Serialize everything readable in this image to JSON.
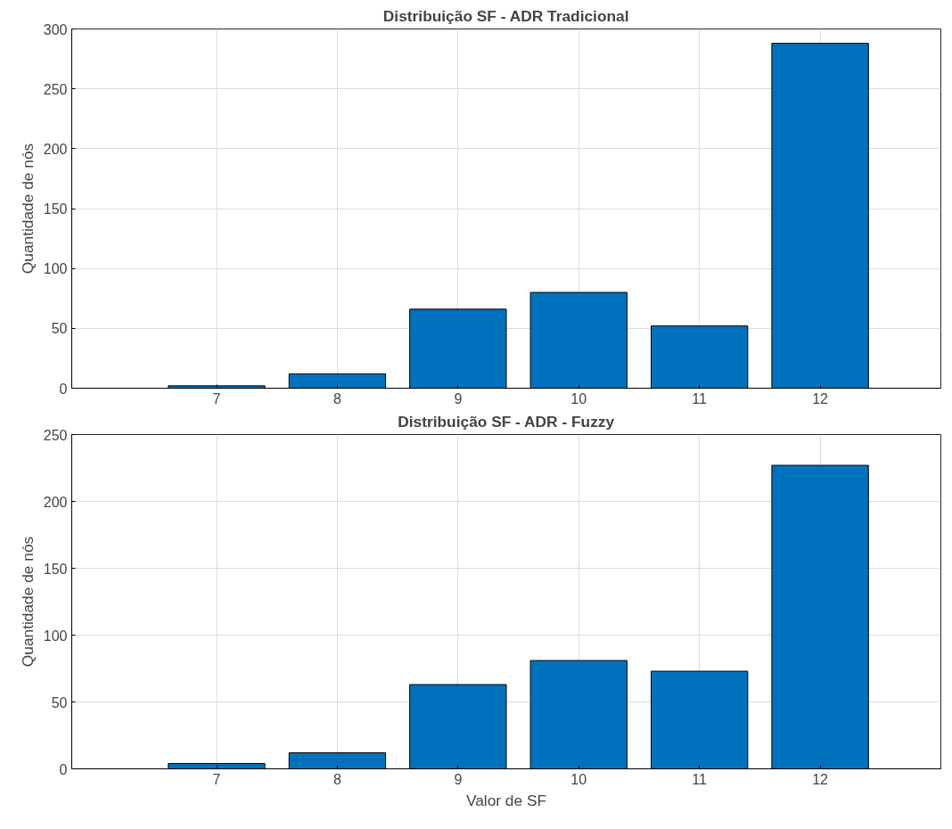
{
  "chart_data": [
    {
      "type": "bar",
      "title": "Distribuição SF - ADR Tradicional",
      "ylabel": "Quantidade de nós",
      "x": [
        7,
        8,
        9,
        10,
        11,
        12
      ],
      "series": [
        {
          "color": "#0072bd",
          "values": [
            2,
            12,
            66,
            80,
            52,
            288
          ]
        }
      ],
      "xlim": [
        5.8,
        13
      ],
      "xticks": [
        7,
        8,
        9,
        10,
        11,
        12
      ],
      "ylim": [
        0,
        300
      ],
      "yticks": [
        0,
        50,
        100,
        150,
        200,
        250,
        300
      ],
      "grid": true
    },
    {
      "type": "bar",
      "title": "Distribuição SF - ADR - Fuzzy",
      "xlabel": "Valor de SF",
      "ylabel": "Quantidade de nós",
      "x": [
        7,
        8,
        9,
        10,
        11,
        12
      ],
      "series": [
        {
          "color": "#0072bd",
          "values": [
            4,
            12,
            63,
            81,
            73,
            227
          ]
        }
      ],
      "xlim": [
        5.8,
        13
      ],
      "xticks": [
        7,
        8,
        9,
        10,
        11,
        12
      ],
      "ylim": [
        0,
        250
      ],
      "yticks": [
        0,
        50,
        100,
        150,
        200,
        250
      ],
      "grid": true
    }
  ]
}
